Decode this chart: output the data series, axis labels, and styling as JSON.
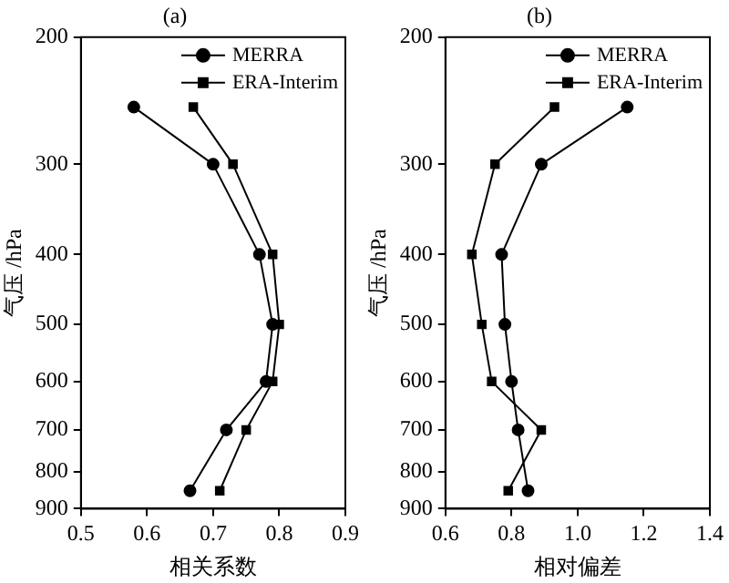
{
  "chart_data": [
    {
      "type": "line",
      "title": "(a)",
      "xlabel": "相关系数",
      "ylabel": "气压 /hPa",
      "log": "y",
      "legend": "top right",
      "grid": false,
      "xlim": [
        0.5,
        0.9
      ],
      "xticks": [
        0.5,
        0.6,
        0.7,
        0.8,
        0.9
      ],
      "ylim": [
        900,
        200
      ],
      "yticks": [
        200,
        300,
        400,
        500,
        600,
        700,
        800,
        900
      ],
      "series": [
        {
          "name": "MERRA",
          "color": "#000000",
          "marker": "circle",
          "x": [
            0.58,
            0.7,
            0.77,
            0.79,
            0.78,
            0.72,
            0.665
          ],
          "values": [
            250,
            300,
            400,
            500,
            600,
            700,
            850
          ]
        },
        {
          "name": "ERA-Interim",
          "color": "#000000",
          "marker": "square",
          "x": [
            0.67,
            0.73,
            0.79,
            0.8,
            0.79,
            0.75,
            0.71
          ],
          "values": [
            250,
            300,
            400,
            500,
            600,
            700,
            850
          ]
        }
      ]
    },
    {
      "type": "line",
      "title": "(b)",
      "xlabel": "相对偏差",
      "ylabel": "气压 /hPa",
      "log": "y",
      "legend": "top right",
      "grid": false,
      "xlim": [
        0.6,
        1.4
      ],
      "xticks": [
        0.6,
        0.8,
        {
          "value": 1,
          "label": "1.0"
        },
        1.2,
        1.4
      ],
      "ylim": [
        900,
        200
      ],
      "yticks": [
        200,
        300,
        400,
        500,
        600,
        700,
        800,
        900
      ],
      "series": [
        {
          "name": "MERRA",
          "color": "#000000",
          "marker": "circle",
          "x": [
            1.15,
            0.89,
            0.77,
            0.78,
            0.8,
            0.82,
            0.85
          ],
          "values": [
            250,
            300,
            400,
            500,
            600,
            700,
            850
          ]
        },
        {
          "name": "ERA-Interim",
          "color": "#000000",
          "marker": "square",
          "x": [
            0.93,
            0.75,
            0.68,
            0.71,
            0.74,
            0.89,
            0.79
          ],
          "values": [
            250,
            300,
            400,
            500,
            600,
            700,
            850
          ]
        }
      ]
    }
  ]
}
